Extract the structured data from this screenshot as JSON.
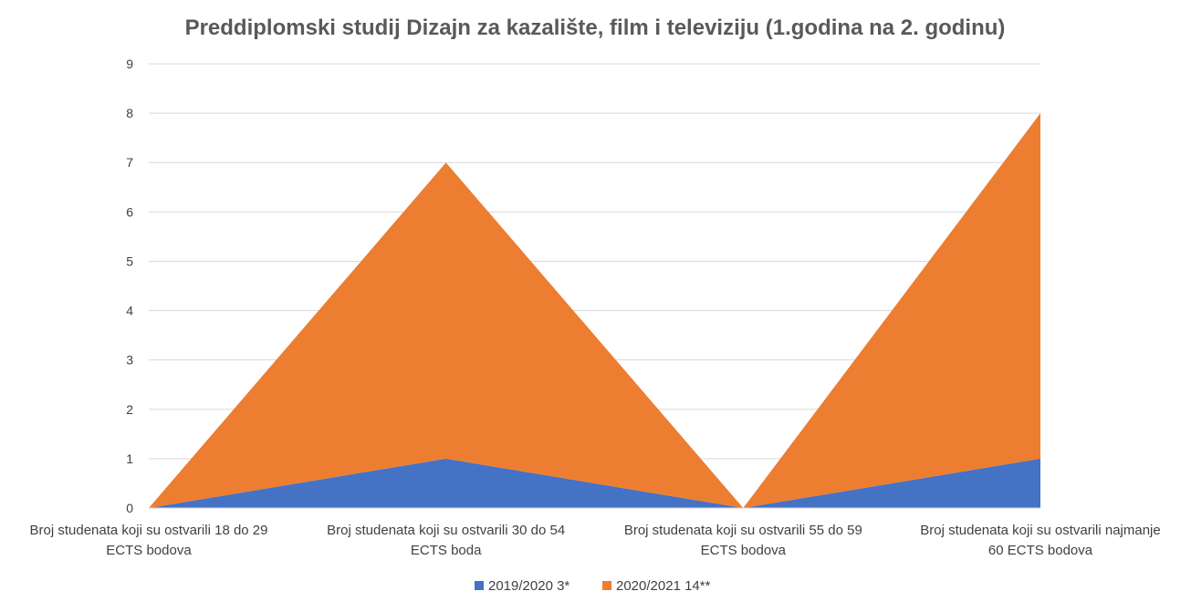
{
  "chart_data": {
    "type": "area",
    "stacked": true,
    "title": "Preddiplomski studij Dizajn za kazalište, film i televiziju (1.godina na 2. godinu)",
    "xlabel": "",
    "ylabel": "",
    "ylim": [
      0,
      9
    ],
    "yticks": [
      "0",
      "1",
      "2",
      "3",
      "4",
      "5",
      "6",
      "7",
      "8",
      "9"
    ],
    "grid": true,
    "legend_position": "bottom",
    "categories": [
      [
        "Broj studenata koji su ostvarili 18 do 29",
        "ECTS bodova"
      ],
      [
        "Broj studenata koji su ostvarili 30 do 54",
        "ECTS boda"
      ],
      [
        "Broj studenata koji su ostvarili 55 do 59",
        "ECTS bodova"
      ],
      [
        "Broj studenata koji su ostvarili najmanje",
        "60 ECTS bodova"
      ]
    ],
    "series": [
      {
        "name": "2019/2020 3*",
        "values": [
          0,
          1,
          0,
          1
        ],
        "color": "#4472C4"
      },
      {
        "name": "2020/2021 14**",
        "values": [
          0,
          6,
          0,
          7
        ],
        "color": "#ED7D31"
      }
    ]
  }
}
